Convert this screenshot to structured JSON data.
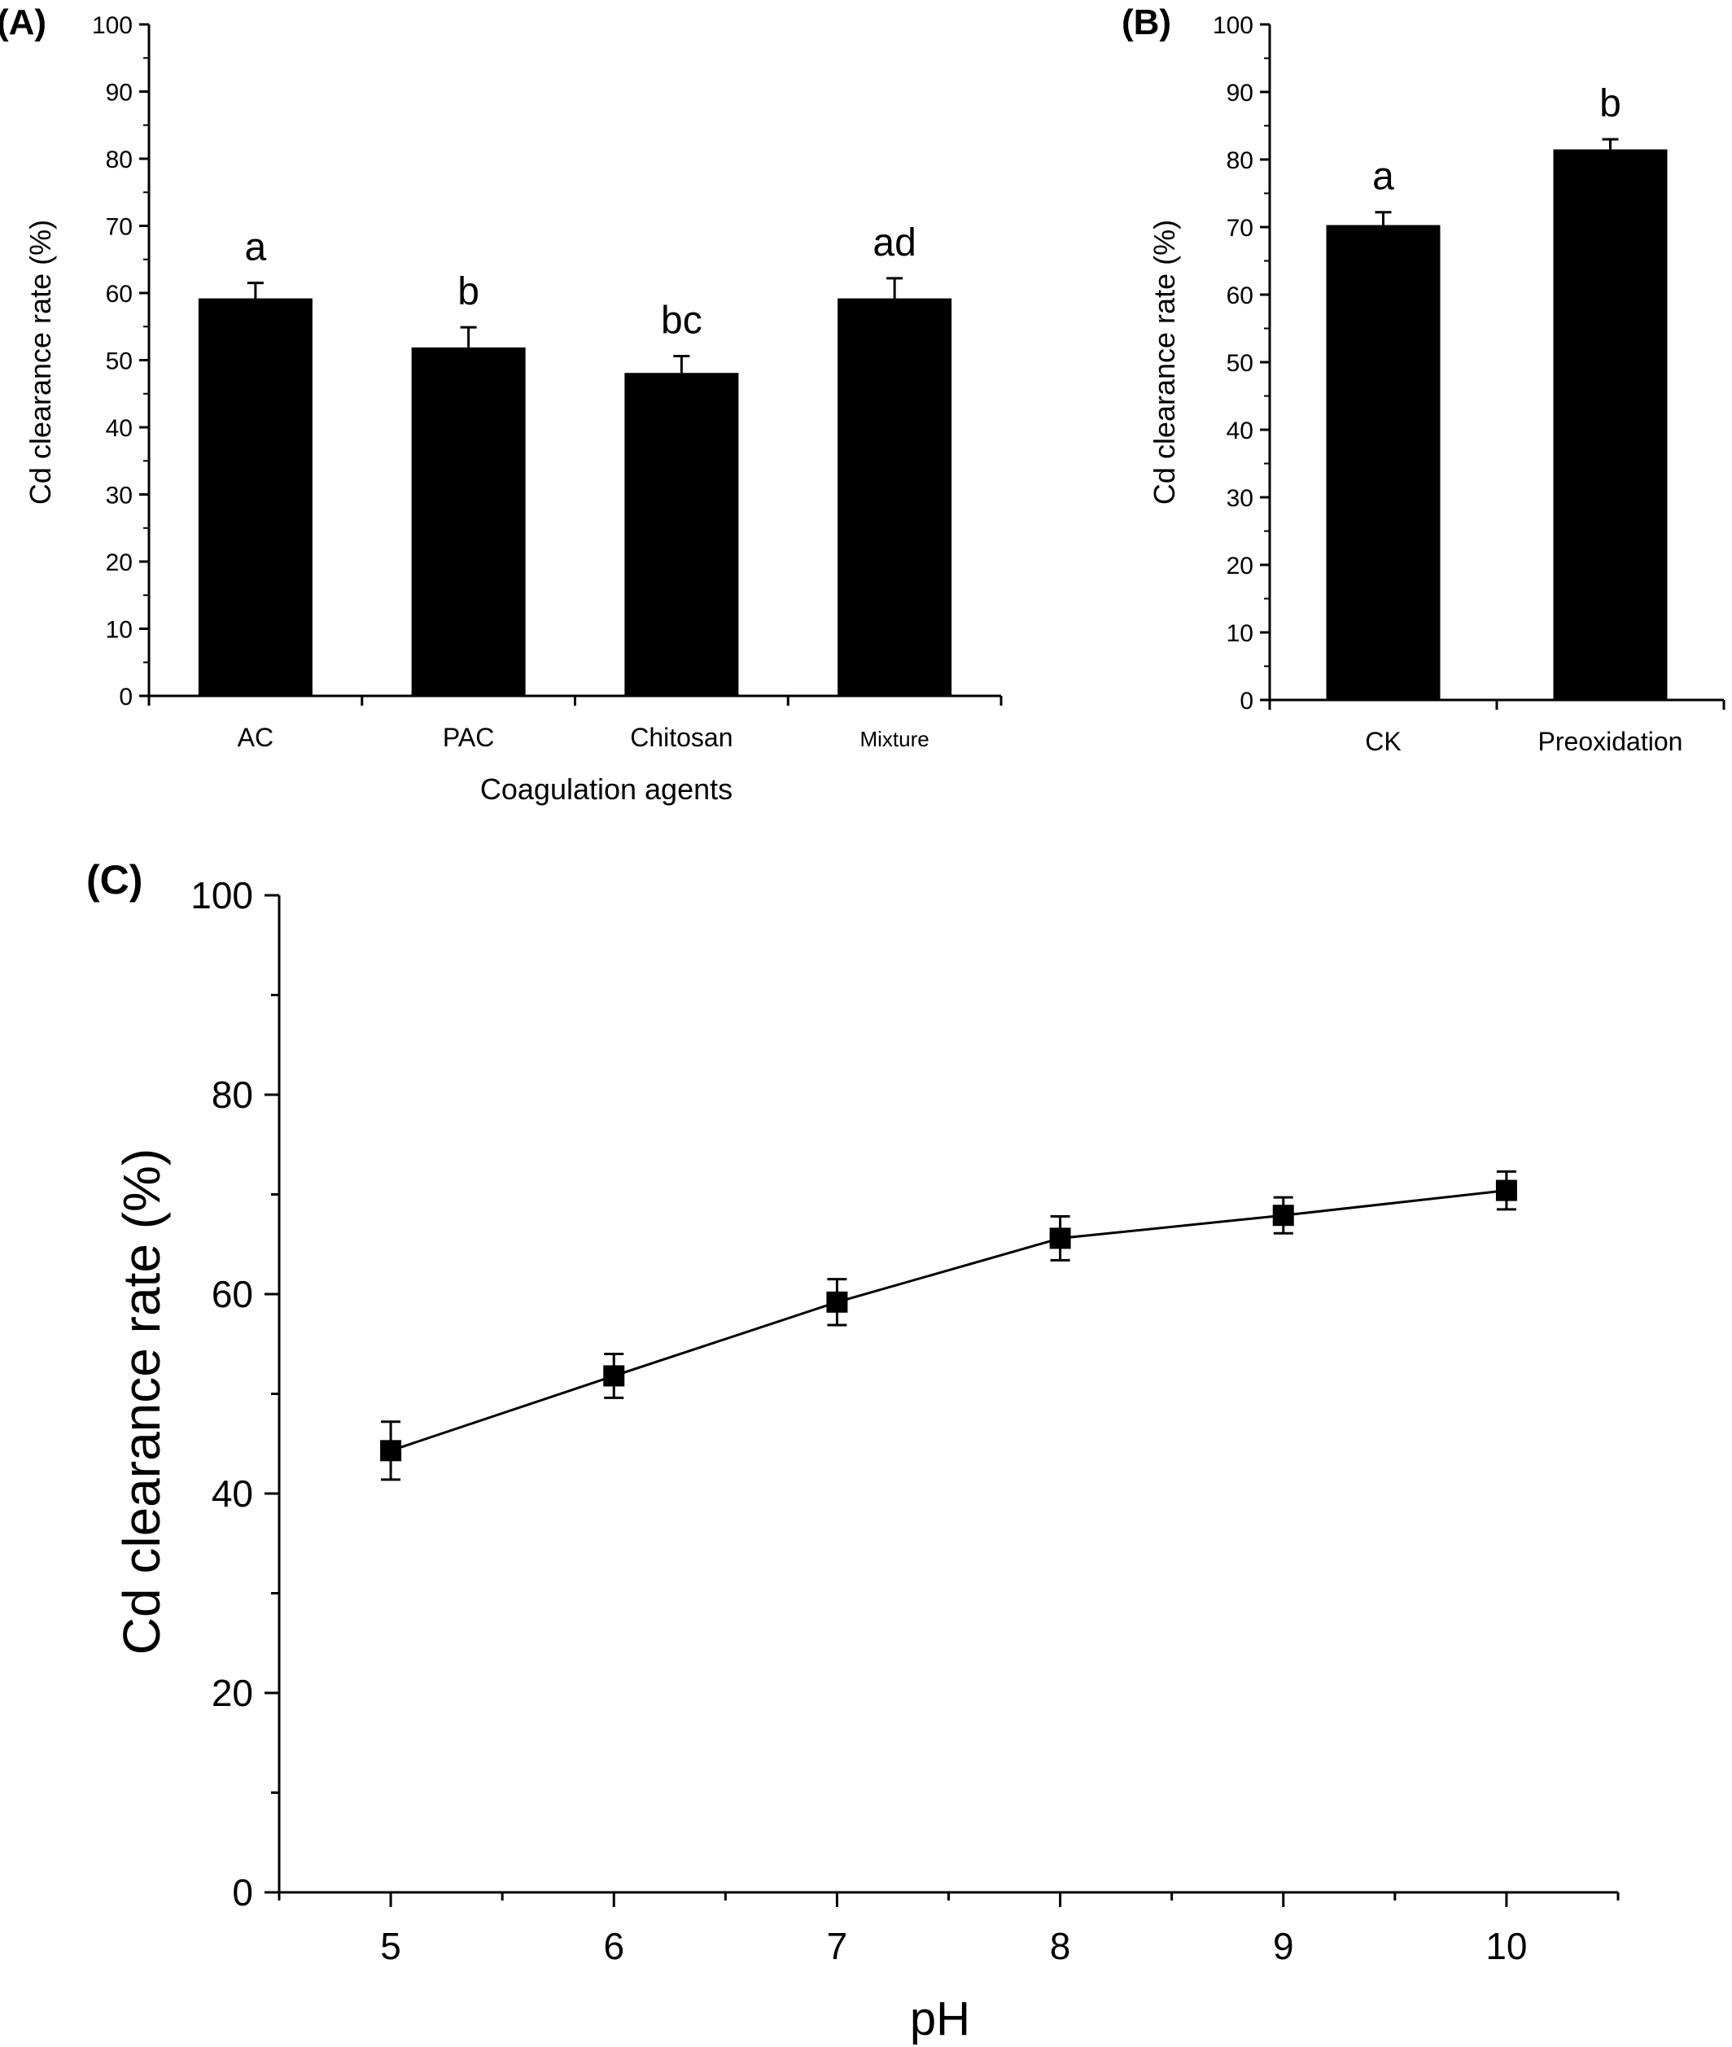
{
  "chart_data": [
    {
      "panel": "(A)",
      "type": "bar",
      "categories": [
        "AC",
        "PAC",
        "Chitosan",
        "Mixture"
      ],
      "values": [
        59.2,
        51.9,
        48.1,
        59.2
      ],
      "errors": [
        2.3,
        3.0,
        2.5,
        3.0
      ],
      "annotations": [
        "a",
        "b",
        "bc",
        "ad"
      ],
      "xlabel": "Coagulation agents",
      "ylabel": "Cd clearance rate (%)",
      "ylim": [
        0,
        100
      ],
      "yticks": [
        0,
        10,
        20,
        30,
        40,
        50,
        60,
        70,
        80,
        90,
        100
      ],
      "bar_color": "#000000",
      "grid": false
    },
    {
      "panel": "(B)",
      "type": "bar",
      "categories": [
        "CK",
        "Preoxidation"
      ],
      "values": [
        70.3,
        81.5
      ],
      "errors": [
        1.9,
        1.5
      ],
      "annotations": [
        "a",
        "b"
      ],
      "xlabel": "",
      "ylabel": "Cd clearance rate (%)",
      "ylim": [
        0,
        100
      ],
      "yticks": [
        0,
        10,
        20,
        30,
        40,
        50,
        60,
        70,
        80,
        90,
        100
      ],
      "bar_color": "#000000",
      "grid": false
    },
    {
      "panel": "(C)",
      "type": "line",
      "x": [
        5,
        6,
        7,
        8,
        9,
        10
      ],
      "y": [
        44.3,
        51.8,
        59.2,
        65.6,
        67.9,
        70.4
      ],
      "errors": [
        2.9,
        2.2,
        2.3,
        2.2,
        1.8,
        1.9
      ],
      "xlabel": "pH",
      "ylabel": "Cd clearance rate (%)",
      "xlim": [
        4.5,
        10.5
      ],
      "ylim": [
        0,
        100
      ],
      "xticks": [
        5,
        6,
        7,
        8,
        9,
        10
      ],
      "yticks": [
        0,
        20,
        40,
        60,
        80,
        100
      ],
      "marker": "square",
      "line_color": "#000000",
      "grid": false
    }
  ]
}
